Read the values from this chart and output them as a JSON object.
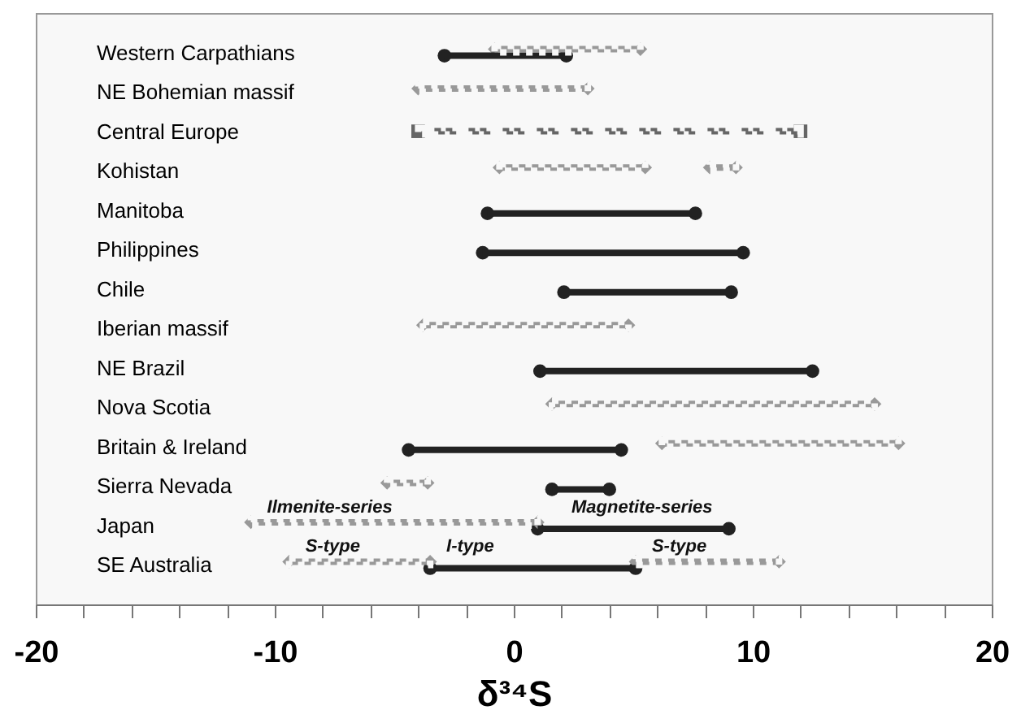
{
  "chart_data": {
    "type": "bar",
    "orientation": "horizontal",
    "xlabel": "δ³⁴S",
    "categories": [
      "Western Carpathians",
      "NE Bohemian massif",
      "Central Europe",
      "Kohistan",
      "Manitoba",
      "Philippines",
      "Chile",
      "Iberian massif",
      "NE Brazil",
      "Nova Scotia",
      "Britain & Ireland",
      "Sierra Nevada",
      "Japan",
      "SE Australia"
    ],
    "series": [
      {
        "color": "#222222",
        "marker": "circle",
        "line_style": "solid",
        "base": [
          -2.9,
          null,
          null,
          null,
          -1.1,
          -1.3,
          2.1,
          null,
          1.1,
          null,
          -4.4,
          1.6,
          1.0,
          -3.5
        ],
        "values": [
          5.1,
          null,
          null,
          null,
          8.7,
          10.9,
          7.0,
          null,
          11.4,
          null,
          8.9,
          2.4,
          8.0,
          8.6
        ]
      },
      {
        "color": "#999999",
        "marker": "diamond",
        "line_style": "dotted",
        "base": [
          -0.8,
          -4.0,
          null,
          -0.6,
          null,
          null,
          null,
          -3.8,
          null,
          1.6,
          6.2,
          -5.3,
          -11.0,
          -9.4
        ],
        "values": [
          6.1,
          7.1,
          null,
          6.1,
          null,
          null,
          null,
          8.6,
          null,
          13.5,
          9.9,
          1.7,
          12.0,
          5.9
        ]
      },
      {
        "color": "#999999",
        "marker": "diamond",
        "line_style": "dotted",
        "base": [
          null,
          null,
          null,
          8.2,
          null,
          null,
          null,
          null,
          null,
          null,
          null,
          null,
          null,
          5.1
        ],
        "values": [
          null,
          null,
          null,
          1.1,
          null,
          null,
          null,
          null,
          null,
          null,
          null,
          null,
          null,
          6.0
        ]
      },
      {
        "color": "#666666",
        "marker": "square",
        "line_style": "dashdot",
        "base": [
          null,
          null,
          -4.0,
          null,
          null,
          null,
          null,
          null,
          null,
          null,
          null,
          null,
          null,
          null
        ],
        "values": [
          null,
          null,
          16.0,
          null,
          null,
          null,
          null,
          null,
          null,
          null,
          null,
          null,
          null,
          null
        ]
      }
    ],
    "xlim": [
      -20,
      20
    ],
    "xticks": [
      -20,
      {
        "value": -18,
        "label": null
      },
      {
        "value": -16,
        "label": null
      },
      {
        "value": -14,
        "label": null
      },
      {
        "value": -12,
        "label": null
      },
      -10,
      {
        "value": -8,
        "label": null
      },
      {
        "value": -6,
        "label": null
      },
      {
        "value": -4,
        "label": null
      },
      {
        "value": -2,
        "label": null
      },
      0,
      {
        "value": 2,
        "label": null
      },
      {
        "value": 4,
        "label": null
      },
      {
        "value": 6,
        "label": null
      },
      {
        "value": 8,
        "label": null
      },
      10,
      {
        "value": 12,
        "label": null
      },
      {
        "value": 14,
        "label": null
      },
      {
        "value": 16,
        "label": null
      },
      {
        "value": 18,
        "label": null
      },
      20
    ],
    "annotations": [
      {
        "text": "Ilmenite-series",
        "x": -11.0,
        "y": "Japan"
      },
      {
        "text": "Magnetite-series",
        "x": 9.0,
        "y": "Japan"
      },
      {
        "text": "S-type",
        "x": -9.4,
        "y": "SE Australia"
      },
      {
        "text": "I-type",
        "x": -3.5,
        "y": "SE Australia"
      },
      {
        "text": "S-type",
        "x": 5.1,
        "y": "SE Australia"
      }
    ],
    "grid": false
  }
}
